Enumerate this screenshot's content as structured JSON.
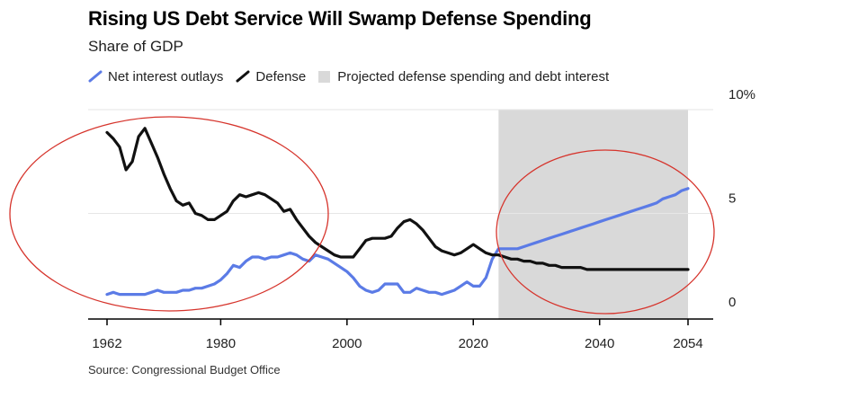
{
  "title": "Rising US Debt Service Will Swamp Defense Spending",
  "subtitle": "Share of GDP",
  "legend": {
    "net_interest": "Net interest outlays",
    "defense": "Defense",
    "projected": "Projected defense spending and debt interest"
  },
  "source": "Source: Congressional Budget Office",
  "colors": {
    "net_interest": "#5b7be6",
    "defense": "#111111",
    "projected": "#d9d9d9",
    "grid": "#e6e6e6",
    "annotation": "#d6342c"
  },
  "chart_data": {
    "type": "line",
    "title": "Rising US Debt Service Will Swamp Defense Spending",
    "subtitle": "Share of GDP",
    "xlabel": "",
    "ylabel": "",
    "xlim": [
      1962,
      2054
    ],
    "ylim": [
      0,
      10
    ],
    "x_ticks": [
      1962,
      1980,
      2000,
      2020,
      2040,
      2054
    ],
    "x_tick_labels": [
      "1962",
      "1980",
      "2000",
      "2020",
      "2040",
      "2054"
    ],
    "y_ticks": [
      0,
      5,
      10
    ],
    "y_tick_labels": [
      "0",
      "5",
      "10%"
    ],
    "grid": true,
    "legend_position": "top-left",
    "projection_range": [
      2024,
      2054
    ],
    "series": [
      {
        "name": "Net interest outlays",
        "x": [
          1962,
          1963,
          1964,
          1965,
          1966,
          1967,
          1968,
          1969,
          1970,
          1971,
          1972,
          1973,
          1974,
          1975,
          1976,
          1977,
          1978,
          1979,
          1980,
          1981,
          1982,
          1983,
          1984,
          1985,
          1986,
          1987,
          1988,
          1989,
          1990,
          1991,
          1992,
          1993,
          1994,
          1995,
          1996,
          1997,
          1998,
          1999,
          2000,
          2001,
          2002,
          2003,
          2004,
          2005,
          2006,
          2007,
          2008,
          2009,
          2010,
          2011,
          2012,
          2013,
          2014,
          2015,
          2016,
          2017,
          2018,
          2019,
          2020,
          2021,
          2022,
          2023,
          2024,
          2025,
          2026,
          2027,
          2028,
          2029,
          2030,
          2031,
          2032,
          2033,
          2034,
          2035,
          2036,
          2037,
          2038,
          2039,
          2040,
          2041,
          2042,
          2043,
          2044,
          2045,
          2046,
          2047,
          2048,
          2049,
          2050,
          2051,
          2052,
          2053,
          2054
        ],
        "values": [
          1.1,
          1.2,
          1.1,
          1.1,
          1.1,
          1.1,
          1.1,
          1.2,
          1.3,
          1.2,
          1.2,
          1.2,
          1.3,
          1.3,
          1.4,
          1.4,
          1.5,
          1.6,
          1.8,
          2.1,
          2.5,
          2.4,
          2.7,
          2.9,
          2.9,
          2.8,
          2.9,
          2.9,
          3.0,
          3.1,
          3.0,
          2.8,
          2.7,
          3.0,
          2.9,
          2.8,
          2.6,
          2.4,
          2.2,
          1.9,
          1.5,
          1.3,
          1.2,
          1.3,
          1.6,
          1.6,
          1.6,
          1.2,
          1.2,
          1.4,
          1.3,
          1.2,
          1.2,
          1.1,
          1.2,
          1.3,
          1.5,
          1.7,
          1.5,
          1.5,
          1.9,
          2.8,
          3.3,
          3.3,
          3.3,
          3.3,
          3.4,
          3.5,
          3.6,
          3.7,
          3.8,
          3.9,
          4.0,
          4.1,
          4.2,
          4.3,
          4.4,
          4.5,
          4.6,
          4.7,
          4.8,
          4.9,
          5.0,
          5.1,
          5.2,
          5.3,
          5.4,
          5.5,
          5.7,
          5.8,
          5.9,
          6.1,
          6.2
        ],
        "projected_from": 2024
      },
      {
        "name": "Defense",
        "x": [
          1962,
          1963,
          1964,
          1965,
          1966,
          1967,
          1968,
          1969,
          1970,
          1971,
          1972,
          1973,
          1974,
          1975,
          1976,
          1977,
          1978,
          1979,
          1980,
          1981,
          1982,
          1983,
          1984,
          1985,
          1986,
          1987,
          1988,
          1989,
          1990,
          1991,
          1992,
          1993,
          1994,
          1995,
          1996,
          1997,
          1998,
          1999,
          2000,
          2001,
          2002,
          2003,
          2004,
          2005,
          2006,
          2007,
          2008,
          2009,
          2010,
          2011,
          2012,
          2013,
          2014,
          2015,
          2016,
          2017,
          2018,
          2019,
          2020,
          2021,
          2022,
          2023,
          2024,
          2025,
          2026,
          2027,
          2028,
          2029,
          2030,
          2031,
          2032,
          2033,
          2034,
          2035,
          2036,
          2037,
          2038,
          2039,
          2040,
          2041,
          2042,
          2043,
          2044,
          2045,
          2046,
          2047,
          2048,
          2049,
          2050,
          2051,
          2052,
          2053,
          2054
        ],
        "values": [
          8.9,
          8.6,
          8.2,
          7.1,
          7.5,
          8.7,
          9.1,
          8.4,
          7.7,
          6.9,
          6.2,
          5.6,
          5.4,
          5.5,
          5.0,
          4.9,
          4.7,
          4.7,
          4.9,
          5.1,
          5.6,
          5.9,
          5.8,
          5.9,
          6.0,
          5.9,
          5.7,
          5.5,
          5.1,
          5.2,
          4.7,
          4.3,
          3.9,
          3.6,
          3.4,
          3.2,
          3.0,
          2.9,
          2.9,
          2.9,
          3.3,
          3.7,
          3.8,
          3.8,
          3.8,
          3.9,
          4.3,
          4.6,
          4.7,
          4.5,
          4.2,
          3.8,
          3.4,
          3.2,
          3.1,
          3.0,
          3.1,
          3.3,
          3.5,
          3.3,
          3.1,
          3.0,
          3.0,
          2.9,
          2.8,
          2.8,
          2.7,
          2.7,
          2.6,
          2.6,
          2.5,
          2.5,
          2.4,
          2.4,
          2.4,
          2.4,
          2.3,
          2.3,
          2.3,
          2.3,
          2.3,
          2.3,
          2.3,
          2.3,
          2.3,
          2.3,
          2.3,
          2.3,
          2.3,
          2.3,
          2.3,
          2.3,
          2.3
        ],
        "projected_from": 2024
      }
    ]
  }
}
